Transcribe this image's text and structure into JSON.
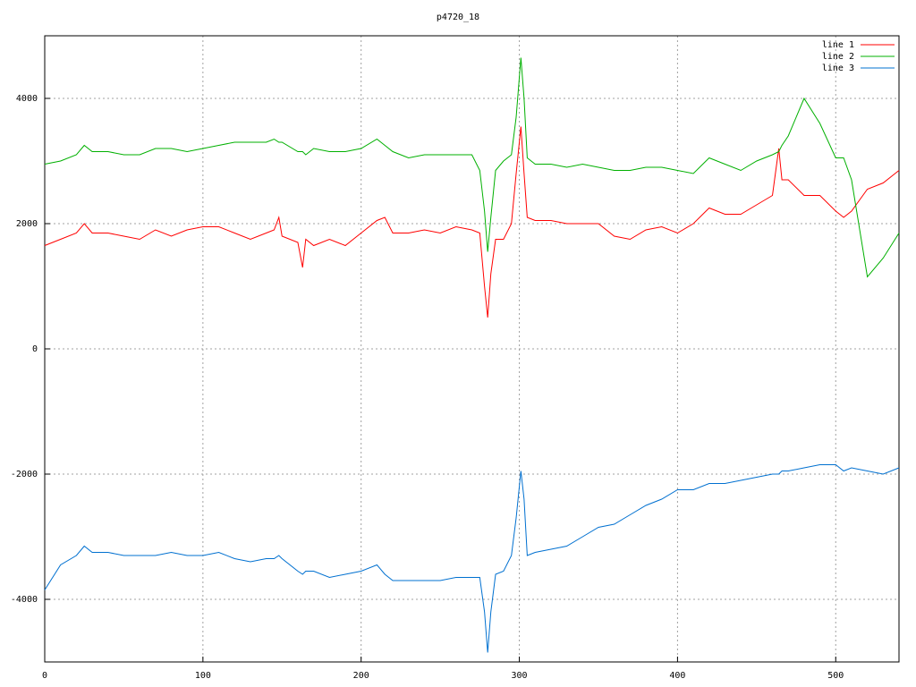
{
  "chart_data": {
    "type": "line",
    "title": "p4720_18",
    "x": [
      0,
      10,
      20,
      25,
      30,
      40,
      50,
      60,
      70,
      80,
      90,
      100,
      110,
      120,
      130,
      140,
      145,
      148,
      150,
      160,
      163,
      165,
      170,
      180,
      190,
      200,
      210,
      215,
      220,
      230,
      240,
      250,
      260,
      270,
      275,
      278,
      280,
      282,
      285,
      290,
      295,
      298,
      301,
      303,
      305,
      310,
      320,
      330,
      340,
      350,
      360,
      370,
      380,
      390,
      400,
      410,
      420,
      430,
      440,
      450,
      460,
      464,
      466,
      470,
      480,
      490,
      500,
      505,
      510,
      520,
      530,
      540
    ],
    "series": [
      {
        "name": "line 1",
        "color": "#ff0000",
        "values": [
          1650,
          1750,
          1850,
          2000,
          1850,
          1850,
          1800,
          1750,
          1900,
          1800,
          1900,
          1950,
          1950,
          1850,
          1750,
          1850,
          1900,
          2100,
          1800,
          1700,
          1300,
          1750,
          1650,
          1750,
          1650,
          1850,
          2050,
          2100,
          1850,
          1850,
          1900,
          1850,
          1950,
          1900,
          1850,
          1000,
          500,
          1200,
          1750,
          1750,
          2000,
          2800,
          3550,
          2800,
          2100,
          2050,
          2050,
          2000,
          2000,
          2000,
          1800,
          1750,
          1900,
          1950,
          1850,
          2000,
          2250,
          2150,
          2150,
          2300,
          2450,
          3200,
          2700,
          2700,
          2450,
          2450,
          2200,
          2100,
          2200,
          2550,
          2650,
          2850
        ]
      },
      {
        "name": "line 2",
        "color": "#00b000",
        "values": [
          2950,
          3000,
          3100,
          3250,
          3150,
          3150,
          3100,
          3100,
          3200,
          3200,
          3150,
          3200,
          3250,
          3300,
          3300,
          3300,
          3350,
          3300,
          3300,
          3150,
          3150,
          3100,
          3200,
          3150,
          3150,
          3200,
          3350,
          3250,
          3150,
          3050,
          3100,
          3100,
          3100,
          3100,
          2850,
          2200,
          1550,
          2100,
          2850,
          3000,
          3100,
          3700,
          4650,
          4000,
          3050,
          2950,
          2950,
          2900,
          2950,
          2900,
          2850,
          2850,
          2900,
          2900,
          2850,
          2800,
          3050,
          2950,
          2850,
          3000,
          3100,
          3150,
          3250,
          3400,
          4000,
          3600,
          3050,
          3050,
          2700,
          1150,
          1450,
          1850
        ]
      },
      {
        "name": "line 3",
        "color": "#0070d0",
        "values": [
          -3850,
          -3450,
          -3300,
          -3150,
          -3250,
          -3250,
          -3300,
          -3300,
          -3300,
          -3250,
          -3300,
          -3300,
          -3250,
          -3350,
          -3400,
          -3350,
          -3350,
          -3300,
          -3350,
          -3550,
          -3600,
          -3550,
          -3550,
          -3650,
          -3600,
          -3550,
          -3450,
          -3600,
          -3700,
          -3700,
          -3700,
          -3700,
          -3650,
          -3650,
          -3650,
          -4200,
          -4850,
          -4200,
          -3600,
          -3550,
          -3300,
          -2700,
          -1950,
          -2400,
          -3300,
          -3250,
          -3200,
          -3150,
          -3000,
          -2850,
          -2800,
          -2650,
          -2500,
          -2400,
          -2250,
          -2250,
          -2150,
          -2150,
          -2100,
          -2050,
          -2000,
          -2000,
          -1950,
          -1950,
          -1900,
          -1850,
          -1850,
          -1950,
          -1900,
          -1950,
          -2000,
          -1900
        ]
      }
    ],
    "xlim": [
      0,
      540
    ],
    "ylim": [
      -5000,
      5000
    ],
    "xticks": [
      0,
      100,
      200,
      300,
      400,
      500
    ],
    "yticks": [
      -4000,
      -2000,
      0,
      2000,
      4000
    ],
    "grid": true,
    "legend": "top-right"
  }
}
